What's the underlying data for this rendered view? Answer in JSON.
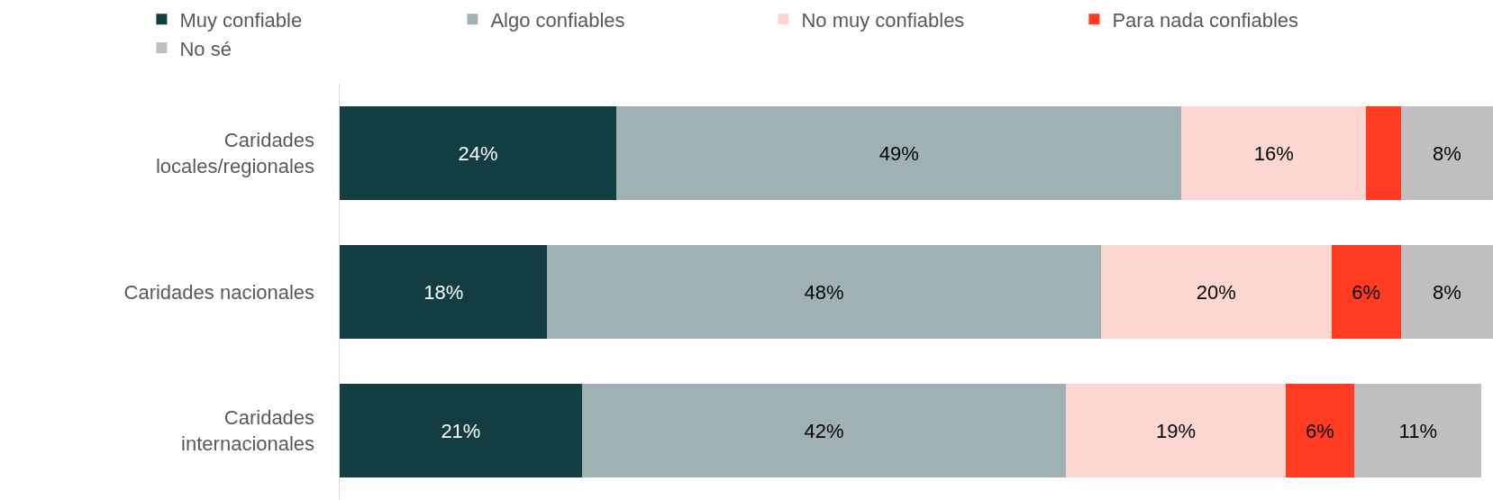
{
  "chart_data": {
    "type": "bar",
    "orientation": "horizontal",
    "stacked": true,
    "categories": [
      "Caridades locales/regionales",
      "Caridades nacionales",
      "Caridades internacionales"
    ],
    "xlim": [
      0,
      100
    ],
    "legend": "top",
    "grid": false,
    "series": [
      {
        "name": "Muy confiable",
        "color": "#123e42",
        "values": [
          24,
          18,
          21
        ],
        "value_labels": [
          "24%",
          "18%",
          "21%"
        ]
      },
      {
        "name": "Algo confiables",
        "color": "#a0b1b4",
        "values": [
          49,
          48,
          42
        ],
        "value_labels": [
          "49%",
          "48%",
          "42%"
        ]
      },
      {
        "name": "No muy confiables",
        "color": "#fcd6d1",
        "values": [
          16,
          20,
          19
        ],
        "value_labels": [
          "16%",
          "20%",
          "19%"
        ]
      },
      {
        "name": "Para nada confiables",
        "color": "#ff3b21",
        "values": [
          3,
          6,
          6
        ],
        "value_labels": [
          null,
          "6%",
          "6%"
        ]
      },
      {
        "name": "No sé",
        "color": "#bfbfbf",
        "values": [
          8,
          8,
          11
        ],
        "value_labels": [
          "8%",
          "8%",
          "11%"
        ]
      }
    ]
  }
}
